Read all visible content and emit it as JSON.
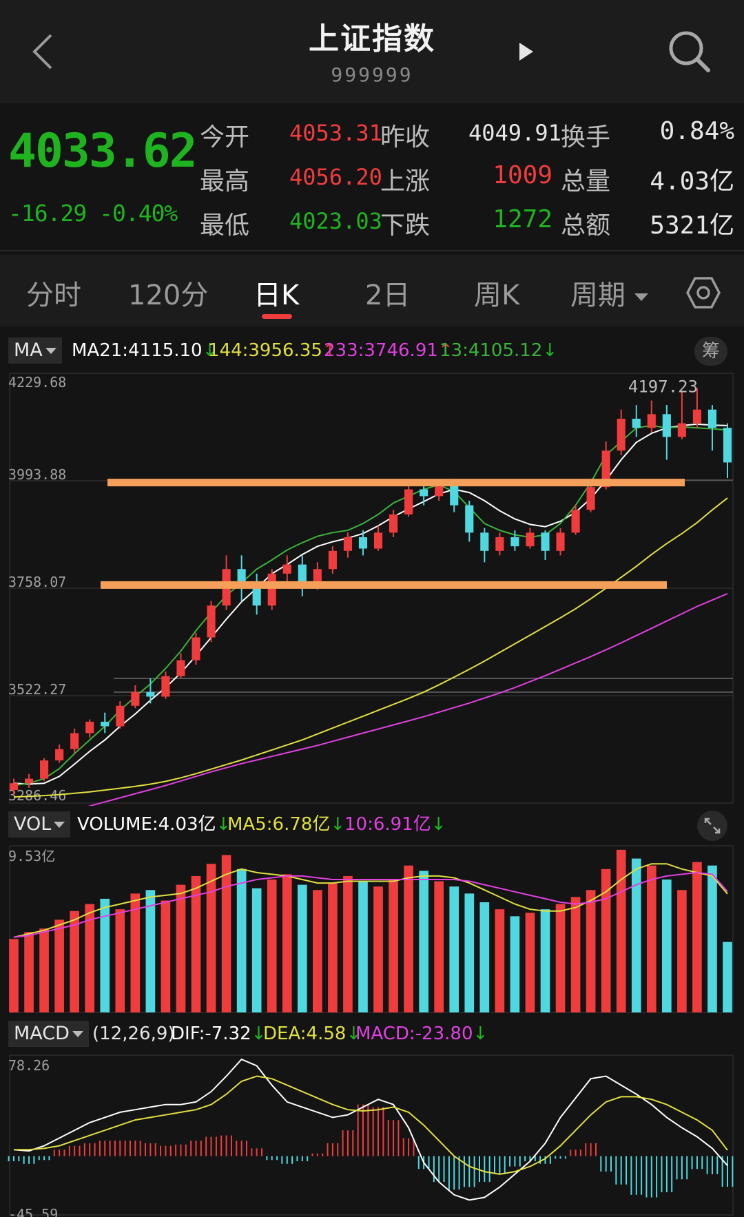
{
  "header": {
    "title": "上证指数",
    "code": "999999"
  },
  "quote": {
    "price": "4033.62",
    "change": "-16.29",
    "change_pct": "-0.40%",
    "rows": [
      {
        "label1": "今开",
        "value1": "4053.31",
        "label2": "昨收",
        "value2": "4049.91",
        "label3": "换手",
        "value3": "0.84%"
      },
      {
        "label1": "最高",
        "value1": "4056.20",
        "label2": "上涨",
        "value2": "1009",
        "label3": "总量",
        "value3": "4.03亿"
      },
      {
        "label1": "最低",
        "value1": "4023.03",
        "label2": "下跌",
        "value2": "1272",
        "label3": "总额",
        "value3": "5321亿"
      }
    ]
  },
  "tabs": [
    "分时",
    "120分",
    "日K",
    "2日",
    "周K",
    "周期"
  ],
  "active_tab": "日K",
  "ma_bar": {
    "selector": "MA",
    "ma21": "MA21:4115.10",
    "ma144": "144:3956.35",
    "ma233": "233:3746.91",
    "ma13": "13:4105.12",
    "chips_label": "筹"
  },
  "vol_bar": {
    "selector": "VOL",
    "volume": "VOLUME:4.03亿",
    "ma5": "MA5:6.78亿",
    "ma10": "10:6.91亿"
  },
  "macd_bar": {
    "selector": "MACD",
    "params": "(12,26,9)",
    "dif": "DIF:-7.32",
    "dea": "DEA:4.58",
    "macd": "MACD:-23.80"
  },
  "colors": {
    "up": "#f03c3c",
    "down": "#4fd8e0",
    "ma21": "#ffffff",
    "ma144": "#e0e040",
    "ma233": "#e040e0",
    "ma13": "#3bb33b",
    "resistance": "#f5a05a"
  },
  "chart_data": [
    {
      "type": "candlestick",
      "y_ticks": [
        "4229.68",
        "3993.88",
        "3758.07",
        "3522.27",
        "3286.46"
      ],
      "ylim": [
        3286.46,
        4229.68
      ],
      "max_label": "4197.23",
      "horizontal_lines": [
        3990,
        3765
      ],
      "series": [
        {
          "name": "MA21",
          "values": [
            3330,
            3328,
            3330,
            3345,
            3372,
            3400,
            3425,
            3455,
            3482,
            3512,
            3540,
            3572,
            3610,
            3650,
            3690,
            3728,
            3758,
            3790,
            3810,
            3832,
            3850,
            3860,
            3868,
            3878,
            3895,
            3915,
            3932,
            3948,
            3965,
            3975,
            3968,
            3950,
            3928,
            3910,
            3898,
            3893,
            3905,
            3925,
            3955,
            3995,
            4040,
            4078,
            4098,
            4110,
            4115,
            4118,
            4116,
            4115
          ]
        },
        {
          "name": "144",
          "values": [
            3300,
            3301,
            3303,
            3305,
            3308,
            3311,
            3315,
            3319,
            3323,
            3328,
            3334,
            3342,
            3351,
            3361,
            3371,
            3381,
            3392,
            3403,
            3414,
            3425,
            3438,
            3451,
            3464,
            3477,
            3490,
            3503,
            3516,
            3530,
            3546,
            3563,
            3580,
            3598,
            3617,
            3636,
            3655,
            3674,
            3693,
            3713,
            3735,
            3758,
            3782,
            3806,
            3832,
            3856,
            3878,
            3902,
            3930,
            3956
          ]
        },
        {
          "name": "233",
          "values": [
            3235,
            3244,
            3253,
            3262,
            3271,
            3280,
            3289,
            3298,
            3307,
            3316,
            3325,
            3335,
            3345,
            3355,
            3364,
            3373,
            3381,
            3389,
            3397,
            3405,
            3413,
            3422,
            3431,
            3440,
            3449,
            3458,
            3467,
            3476,
            3486,
            3496,
            3506,
            3517,
            3528,
            3540,
            3553,
            3566,
            3580,
            3594,
            3608,
            3623,
            3638,
            3654,
            3670,
            3686,
            3702,
            3718,
            3732,
            3746
          ]
        },
        {
          "name": "13",
          "values": [
            3325,
            3330,
            3340,
            3362,
            3395,
            3425,
            3455,
            3490,
            3520,
            3548,
            3582,
            3620,
            3665,
            3705,
            3742,
            3770,
            3800,
            3820,
            3842,
            3858,
            3872,
            3880,
            3885,
            3900,
            3920,
            3945,
            3960,
            3975,
            3985,
            3970,
            3935,
            3900,
            3885,
            3875,
            3870,
            3875,
            3900,
            3940,
            3990,
            4050,
            4080,
            4110,
            4115,
            4110,
            4112,
            4110,
            4108,
            4105
          ]
        }
      ],
      "candles": [
        {
          "o": 3315,
          "c": 3330,
          "h": 3340,
          "l": 3305
        },
        {
          "o": 3330,
          "c": 3340,
          "h": 3350,
          "l": 3320
        },
        {
          "o": 3340,
          "c": 3380,
          "h": 3385,
          "l": 3335
        },
        {
          "o": 3380,
          "c": 3405,
          "h": 3415,
          "l": 3375
        },
        {
          "o": 3405,
          "c": 3440,
          "h": 3450,
          "l": 3395
        },
        {
          "o": 3440,
          "c": 3465,
          "h": 3470,
          "l": 3430
        },
        {
          "o": 3465,
          "c": 3455,
          "h": 3485,
          "l": 3440
        },
        {
          "o": 3455,
          "c": 3500,
          "h": 3510,
          "l": 3450
        },
        {
          "o": 3500,
          "c": 3530,
          "h": 3545,
          "l": 3495
        },
        {
          "o": 3530,
          "c": 3520,
          "h": 3560,
          "l": 3505
        },
        {
          "o": 3520,
          "c": 3565,
          "h": 3575,
          "l": 3515
        },
        {
          "o": 3565,
          "c": 3600,
          "h": 3615,
          "l": 3560
        },
        {
          "o": 3600,
          "c": 3650,
          "h": 3660,
          "l": 3590
        },
        {
          "o": 3650,
          "c": 3720,
          "h": 3730,
          "l": 3640
        },
        {
          "o": 3720,
          "c": 3800,
          "h": 3830,
          "l": 3710
        },
        {
          "o": 3800,
          "c": 3760,
          "h": 3830,
          "l": 3730
        },
        {
          "o": 3760,
          "c": 3720,
          "h": 3790,
          "l": 3700
        },
        {
          "o": 3720,
          "c": 3790,
          "h": 3800,
          "l": 3710
        },
        {
          "o": 3790,
          "c": 3810,
          "h": 3830,
          "l": 3770
        },
        {
          "o": 3810,
          "c": 3770,
          "h": 3830,
          "l": 3740
        },
        {
          "o": 3770,
          "c": 3800,
          "h": 3815,
          "l": 3755
        },
        {
          "o": 3800,
          "c": 3840,
          "h": 3850,
          "l": 3790
        },
        {
          "o": 3840,
          "c": 3870,
          "h": 3880,
          "l": 3825
        },
        {
          "o": 3870,
          "c": 3845,
          "h": 3885,
          "l": 3830
        },
        {
          "o": 3845,
          "c": 3880,
          "h": 3895,
          "l": 3840
        },
        {
          "o": 3880,
          "c": 3920,
          "h": 3930,
          "l": 3870
        },
        {
          "o": 3920,
          "c": 3975,
          "h": 3990,
          "l": 3915
        },
        {
          "o": 3975,
          "c": 3960,
          "h": 3995,
          "l": 3940
        },
        {
          "o": 3960,
          "c": 3985,
          "h": 3995,
          "l": 3950
        },
        {
          "o": 3985,
          "c": 3940,
          "h": 3998,
          "l": 3925
        },
        {
          "o": 3940,
          "c": 3880,
          "h": 3950,
          "l": 3860
        },
        {
          "o": 3880,
          "c": 3840,
          "h": 3890,
          "l": 3815
        },
        {
          "o": 3840,
          "c": 3870,
          "h": 3880,
          "l": 3830
        },
        {
          "o": 3870,
          "c": 3850,
          "h": 3885,
          "l": 3840
        },
        {
          "o": 3850,
          "c": 3880,
          "h": 3890,
          "l": 3845
        },
        {
          "o": 3880,
          "c": 3840,
          "h": 3885,
          "l": 3820
        },
        {
          "o": 3840,
          "c": 3880,
          "h": 3890,
          "l": 3830
        },
        {
          "o": 3880,
          "c": 3930,
          "h": 3940,
          "l": 3875
        },
        {
          "o": 3930,
          "c": 3980,
          "h": 3990,
          "l": 3925
        },
        {
          "o": 3980,
          "c": 4060,
          "h": 4080,
          "l": 3975
        },
        {
          "o": 4060,
          "c": 4130,
          "h": 4150,
          "l": 4050
        },
        {
          "o": 4130,
          "c": 4110,
          "h": 4160,
          "l": 4090
        },
        {
          "o": 4110,
          "c": 4140,
          "h": 4170,
          "l": 4100
        },
        {
          "o": 4140,
          "c": 4090,
          "h": 4160,
          "l": 4040
        },
        {
          "o": 4090,
          "c": 4120,
          "h": 4190,
          "l": 4085
        },
        {
          "o": 4120,
          "c": 4150,
          "h": 4197,
          "l": 4110
        },
        {
          "o": 4150,
          "c": 4110,
          "h": 4160,
          "l": 4060
        },
        {
          "o": 4110,
          "c": 4034,
          "h": 4120,
          "l": 4000
        }
      ]
    },
    {
      "type": "bar",
      "y_ticks": [
        "9.53亿"
      ],
      "ylim": [
        0,
        9.53
      ],
      "volume_values": [
        4.2,
        4.6,
        4.8,
        5.3,
        5.8,
        6.2,
        6.5,
        5.9,
        6.8,
        7.0,
        6.4,
        7.3,
        7.8,
        8.5,
        9.0,
        8.2,
        7.1,
        7.6,
        7.9,
        7.3,
        7.0,
        7.4,
        7.8,
        7.5,
        7.2,
        7.6,
        8.4,
        8.1,
        7.5,
        7.2,
        6.8,
        6.3,
        5.9,
        5.5,
        5.7,
        5.9,
        6.2,
        6.6,
        7.0,
        8.2,
        9.3,
        8.8,
        8.4,
        7.6,
        7.0,
        8.6,
        8.4,
        4.03
      ],
      "series": [
        {
          "name": "MA5",
          "values": [
            4.3,
            4.5,
            4.7,
            5.0,
            5.3,
            5.7,
            6.0,
            6.2,
            6.4,
            6.6,
            6.7,
            6.8,
            7.1,
            7.5,
            7.9,
            8.2,
            8.0,
            7.9,
            7.8,
            7.6,
            7.4,
            7.4,
            7.5,
            7.5,
            7.5,
            7.5,
            7.7,
            7.8,
            7.8,
            7.7,
            7.4,
            7.0,
            6.6,
            6.2,
            5.9,
            5.8,
            5.8,
            6.0,
            6.4,
            6.9,
            7.6,
            8.2,
            8.5,
            8.5,
            8.2,
            8.0,
            7.8,
            6.78
          ]
        },
        {
          "name": "10",
          "values": [
            4.3,
            4.4,
            4.6,
            4.8,
            5.0,
            5.3,
            5.5,
            5.7,
            5.9,
            6.1,
            6.3,
            6.5,
            6.7,
            6.9,
            7.2,
            7.4,
            7.6,
            7.7,
            7.8,
            7.8,
            7.7,
            7.6,
            7.6,
            7.6,
            7.6,
            7.6,
            7.6,
            7.6,
            7.6,
            7.6,
            7.5,
            7.3,
            7.1,
            6.9,
            6.7,
            6.5,
            6.3,
            6.2,
            6.3,
            6.5,
            6.9,
            7.3,
            7.6,
            7.8,
            7.9,
            8.0,
            7.9,
            6.91
          ]
        }
      ]
    },
    {
      "type": "line",
      "y_ticks": [
        "78.26",
        "-45.59"
      ],
      "ylim": [
        -45.59,
        78.26
      ],
      "macd_bars": [
        -4,
        -6,
        -3,
        5,
        8,
        10,
        12,
        12,
        12,
        10,
        8,
        9,
        12,
        15,
        16,
        12,
        6,
        -3,
        -6,
        -4,
        2,
        10,
        20,
        40,
        38,
        28,
        14,
        -10,
        -20,
        -26,
        -24,
        -20,
        -14,
        -8,
        -4,
        -6,
        -2,
        5,
        10,
        -12,
        -22,
        -30,
        -32,
        -28,
        -18,
        -10,
        -14,
        -23.8
      ],
      "series": [
        {
          "name": "DIF",
          "values": [
            5,
            4,
            8,
            14,
            20,
            26,
            30,
            34,
            36,
            38,
            40,
            40,
            42,
            50,
            62,
            75,
            70,
            55,
            42,
            38,
            34,
            30,
            32,
            38,
            44,
            40,
            22,
            -5,
            -20,
            -30,
            -34,
            -32,
            -24,
            -14,
            -4,
            10,
            30,
            45,
            60,
            62,
            55,
            48,
            40,
            30,
            22,
            15,
            6,
            -7.32
          ]
        },
        {
          "name": "DEA",
          "values": [
            5,
            5,
            6,
            8,
            12,
            16,
            20,
            24,
            28,
            30,
            32,
            34,
            36,
            40,
            48,
            58,
            62,
            60,
            55,
            50,
            45,
            40,
            36,
            35,
            36,
            38,
            34,
            24,
            12,
            0,
            -8,
            -12,
            -14,
            -12,
            -8,
            -2,
            8,
            20,
            32,
            42,
            46,
            46,
            44,
            40,
            34,
            28,
            20,
            4.58
          ]
        }
      ]
    }
  ]
}
